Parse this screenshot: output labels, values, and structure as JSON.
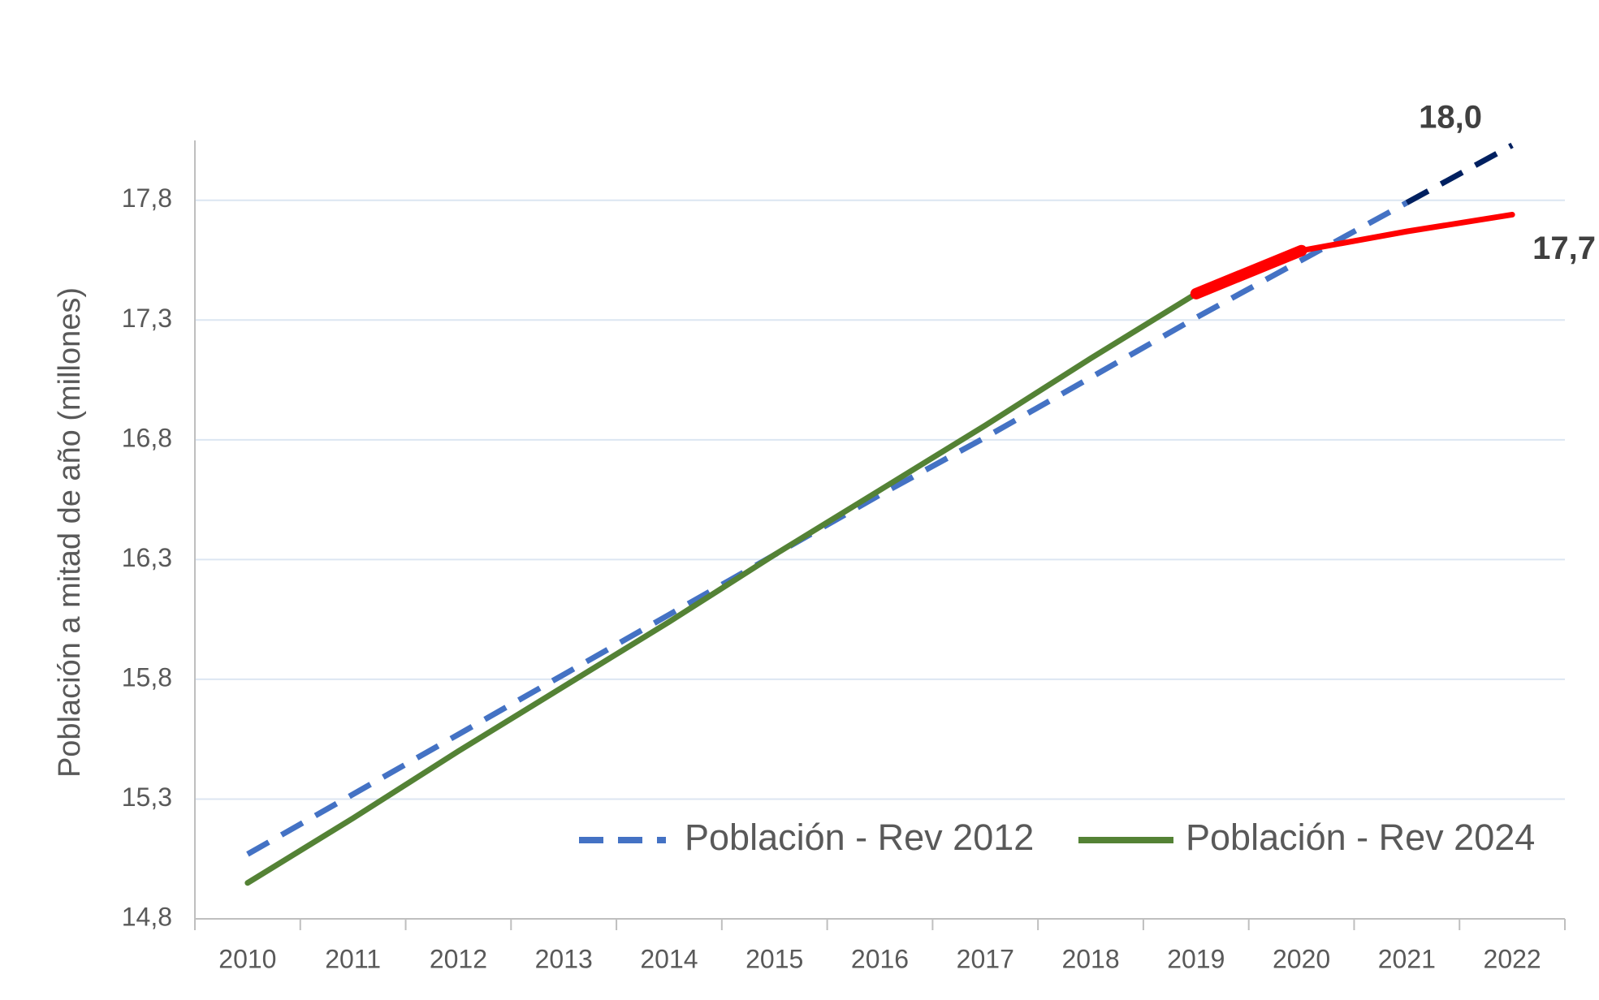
{
  "chart_data": {
    "type": "line",
    "y_label": "Población a mitad de año (millones)",
    "categories": [
      "2010",
      "2011",
      "2012",
      "2013",
      "2014",
      "2015",
      "2016",
      "2017",
      "2018",
      "2019",
      "2020",
      "2021",
      "2022"
    ],
    "series": [
      {
        "name": "Población - Rev 2012",
        "color": "#4472c4",
        "projection_color": "#002060",
        "projection_from": "2021",
        "dashed": true,
        "values": [
          15.07,
          15.32,
          15.57,
          15.82,
          16.07,
          16.32,
          16.57,
          16.81,
          17.06,
          17.31,
          17.55,
          17.79,
          18.03
        ],
        "value_labels": [
          null,
          null,
          null,
          null,
          null,
          null,
          null,
          null,
          null,
          null,
          null,
          null,
          "18,0"
        ]
      },
      {
        "name": "Población - Rev 2024",
        "color": "#548235",
        "projection_color": "#ff0000",
        "projection_from": "2019",
        "dashed": false,
        "values": [
          14.95,
          15.22,
          15.5,
          15.77,
          16.04,
          16.32,
          16.59,
          16.86,
          17.14,
          17.41,
          17.59,
          17.67,
          17.74
        ],
        "value_labels": [
          null,
          null,
          null,
          null,
          null,
          null,
          null,
          null,
          null,
          null,
          null,
          null,
          "17,7"
        ]
      }
    ],
    "ylim": [
      14.8,
      18.05
    ],
    "yticks": [
      {
        "value": 14.8,
        "label": "14,8"
      },
      {
        "value": 15.3,
        "label": "15,3"
      },
      {
        "value": 15.8,
        "label": "15,8"
      },
      {
        "value": 16.3,
        "label": "16,3"
      },
      {
        "value": 16.8,
        "label": "16,8"
      },
      {
        "value": 17.3,
        "label": "17,3"
      },
      {
        "value": 17.8,
        "label": "17,8"
      }
    ],
    "grid": true,
    "legend": "bottom-right"
  }
}
